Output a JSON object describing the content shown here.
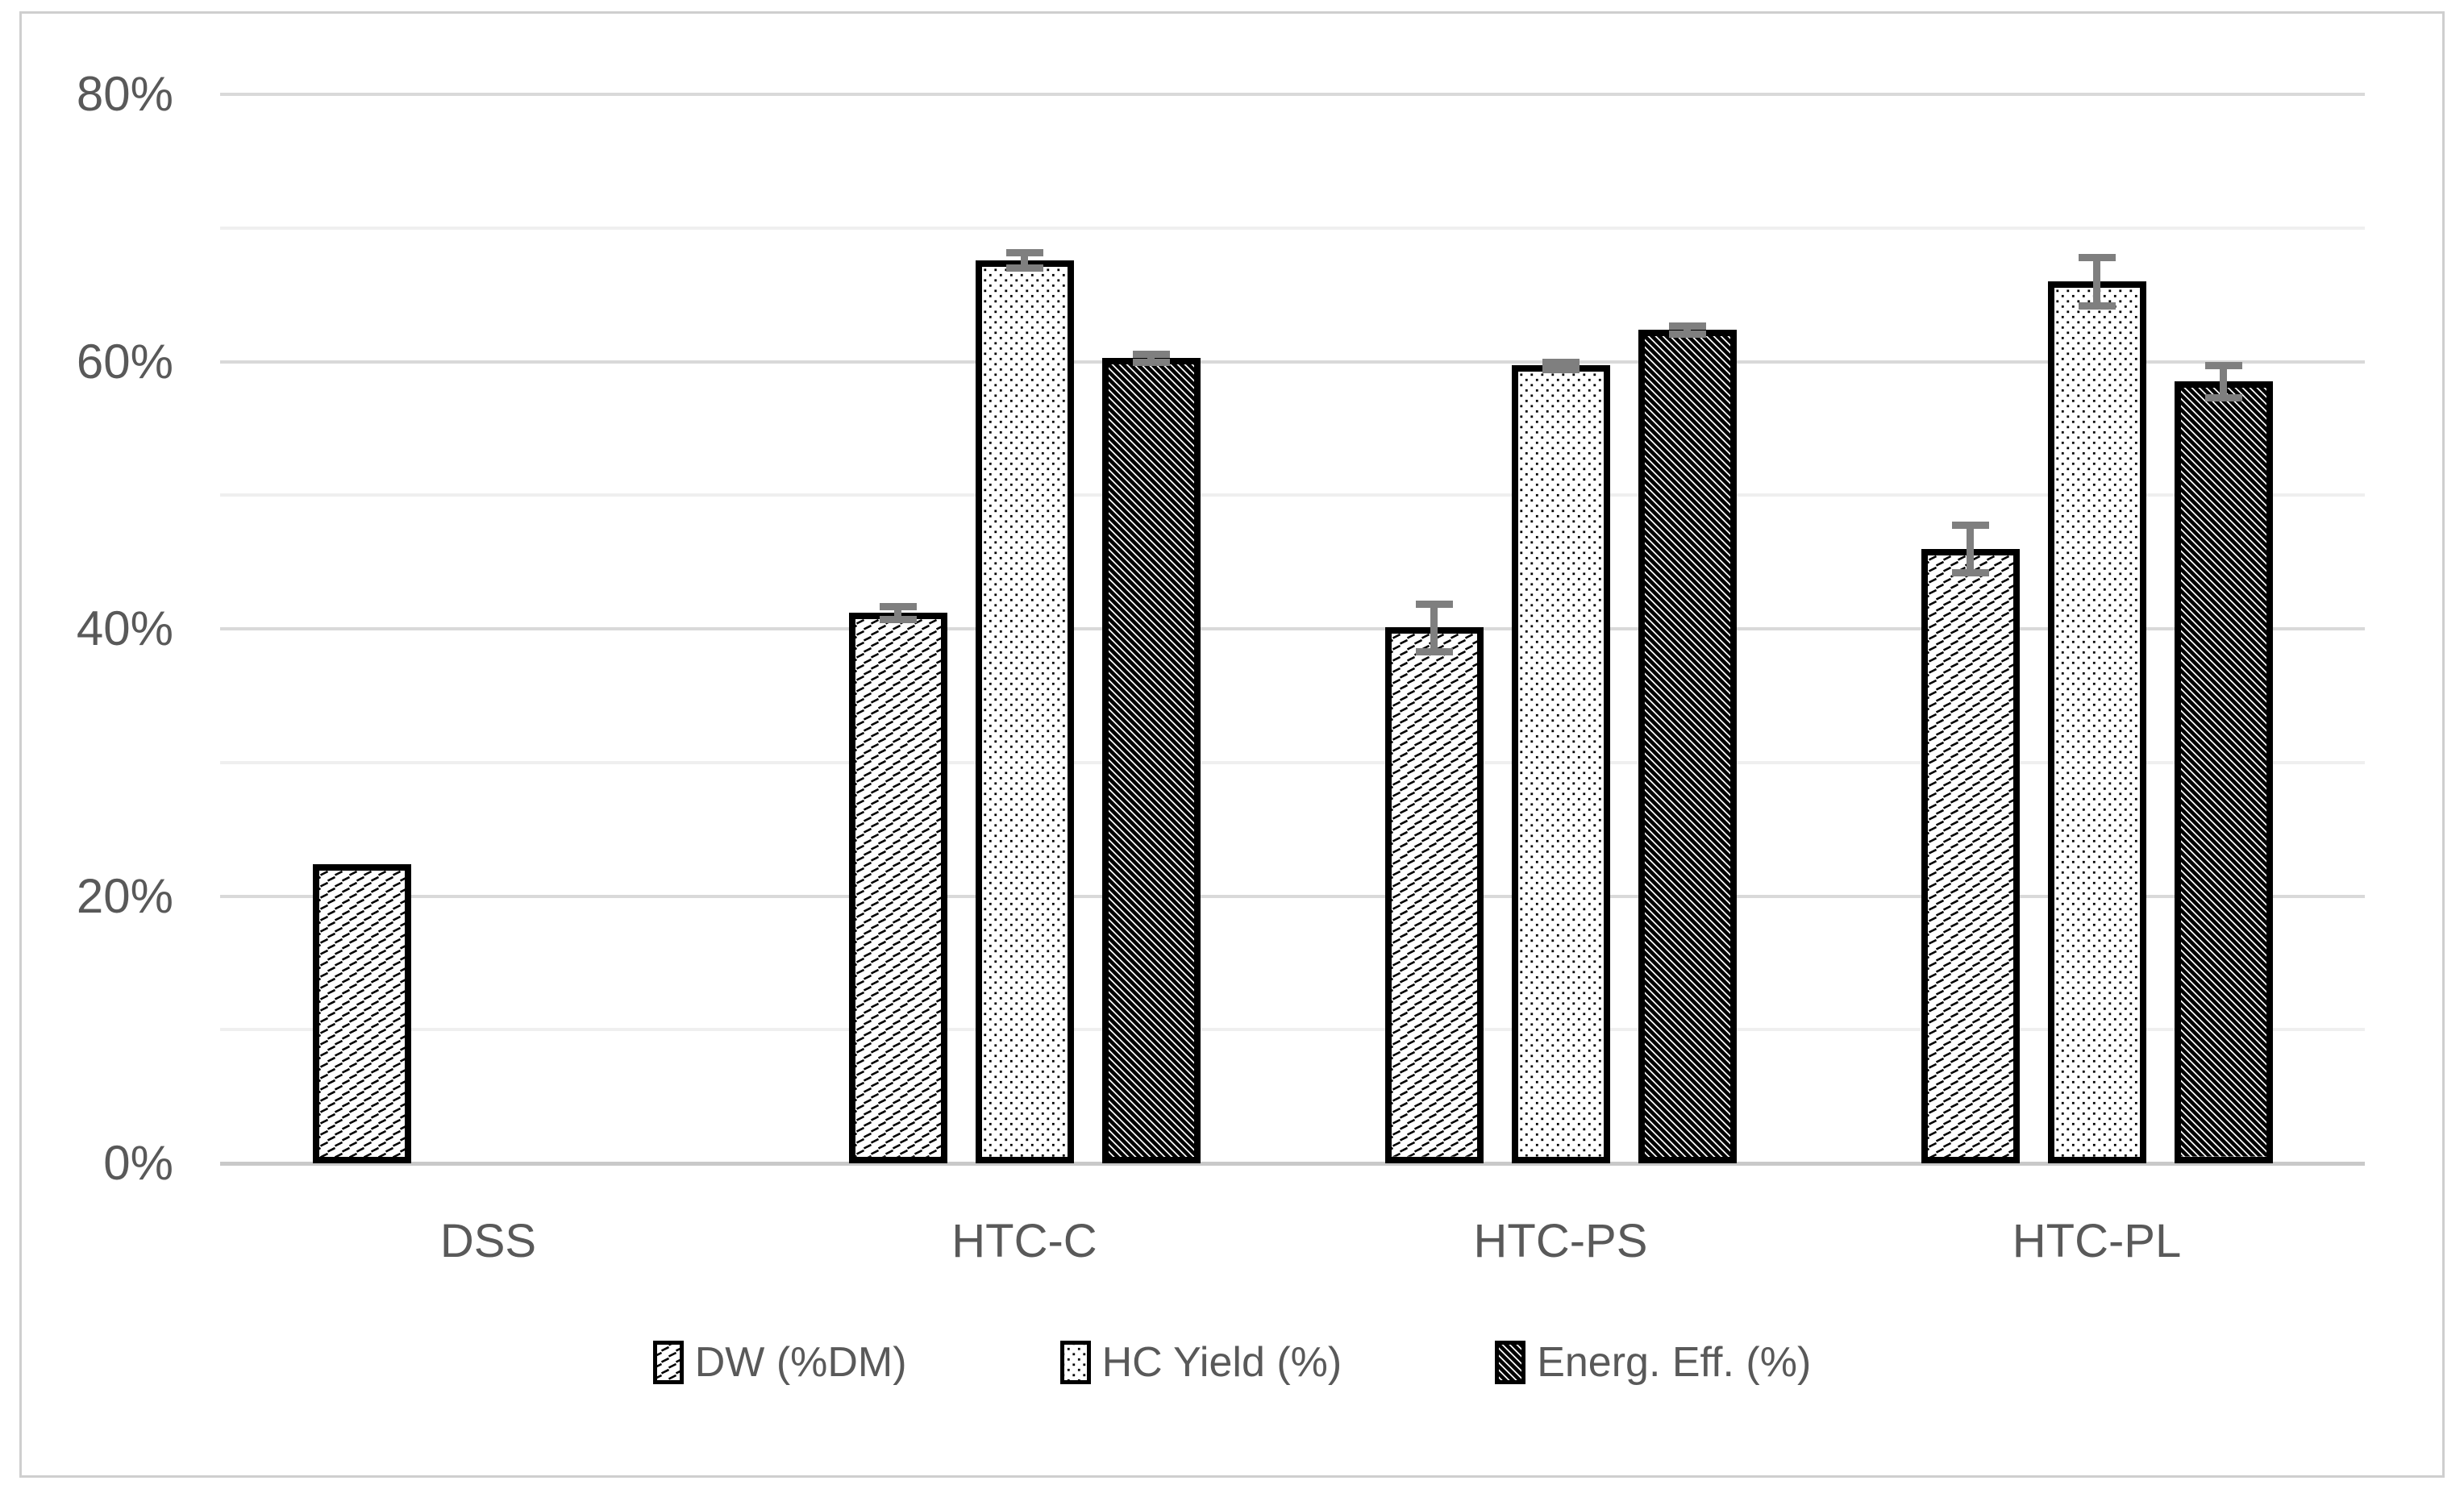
{
  "figure": {
    "background_color": "#ffffff",
    "outer_border_color": "#cfcfcf"
  },
  "chart_data": {
    "type": "bar",
    "title": "",
    "categories": [
      "DSS",
      "HTC-C",
      "HTC-PS",
      "HTC-PL"
    ],
    "series": [
      {
        "name": "DW (%DM)",
        "pattern": "light-diagonal-dash-hatch",
        "values": [
          22.4,
          41.2,
          40.1,
          46.0
        ],
        "errors": [
          null,
          0.5,
          1.8,
          1.8
        ]
      },
      {
        "name": "HC Yield (%)",
        "pattern": "fine-dots",
        "values": [
          null,
          67.6,
          59.7,
          66.0
        ],
        "errors": [
          null,
          0.6,
          0.3,
          1.8
        ]
      },
      {
        "name": "Energ. Eff. (%)",
        "pattern": "dense-diagonal-stripes",
        "values": [
          null,
          60.3,
          62.4,
          58.5
        ],
        "errors": [
          null,
          0.3,
          0.3,
          1.2
        ]
      }
    ],
    "y_axis": {
      "min": 0,
      "max": 80,
      "major_tick_step": 20,
      "minor_gridline_step": 10,
      "tick_labels": [
        "0%",
        "20%",
        "40%",
        "60%",
        "80%"
      ],
      "unit": "%"
    },
    "grid": {
      "major": true,
      "minor": true
    },
    "legend_position": "bottom",
    "colors": {
      "bar_fill": "#ffffff",
      "bar_border": "#000000",
      "error_bar": "#7f7f7f",
      "text": "#595959",
      "major_gridline": "#d9d9d9",
      "minor_gridline": "#efefef",
      "axis_line": "#c9c9c9"
    }
  }
}
